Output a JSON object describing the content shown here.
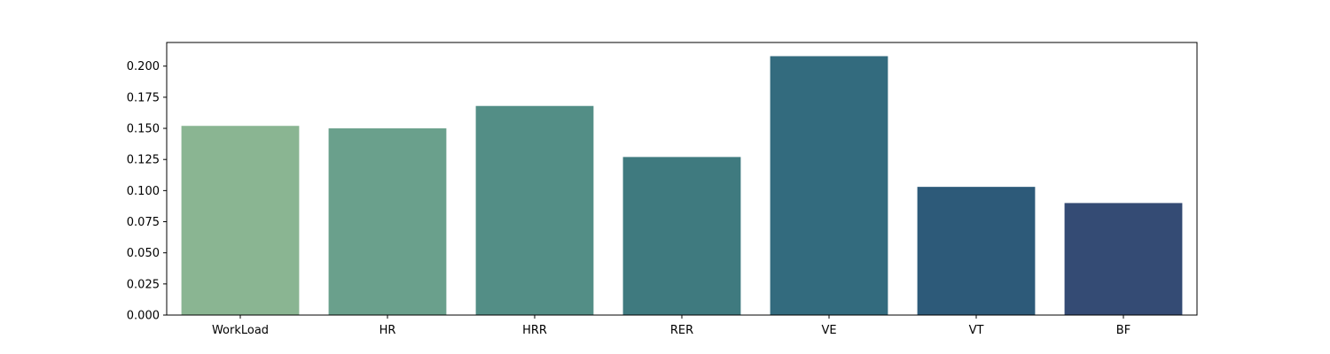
{
  "chart_data": {
    "type": "bar",
    "title": "",
    "xlabel": "",
    "ylabel": "",
    "categories": [
      "WorkLoad",
      "HR",
      "HRR",
      "RER",
      "VE",
      "VT",
      "BF"
    ],
    "values": [
      0.152,
      0.15,
      0.168,
      0.127,
      0.208,
      0.103,
      0.09
    ],
    "colors": [
      "#8ab592",
      "#6aa08c",
      "#538e86",
      "#3f7a7f",
      "#336b7e",
      "#2d5a79",
      "#344b74"
    ],
    "ylim": [
      0,
      0.219
    ],
    "yticks": [
      0.0,
      0.025,
      0.05,
      0.075,
      0.1,
      0.125,
      0.15,
      0.175,
      0.2
    ],
    "ytick_labels": [
      "0.000",
      "0.025",
      "0.050",
      "0.075",
      "0.100",
      "0.125",
      "0.150",
      "0.175",
      "0.200"
    ],
    "grid": false,
    "legend": "none"
  }
}
